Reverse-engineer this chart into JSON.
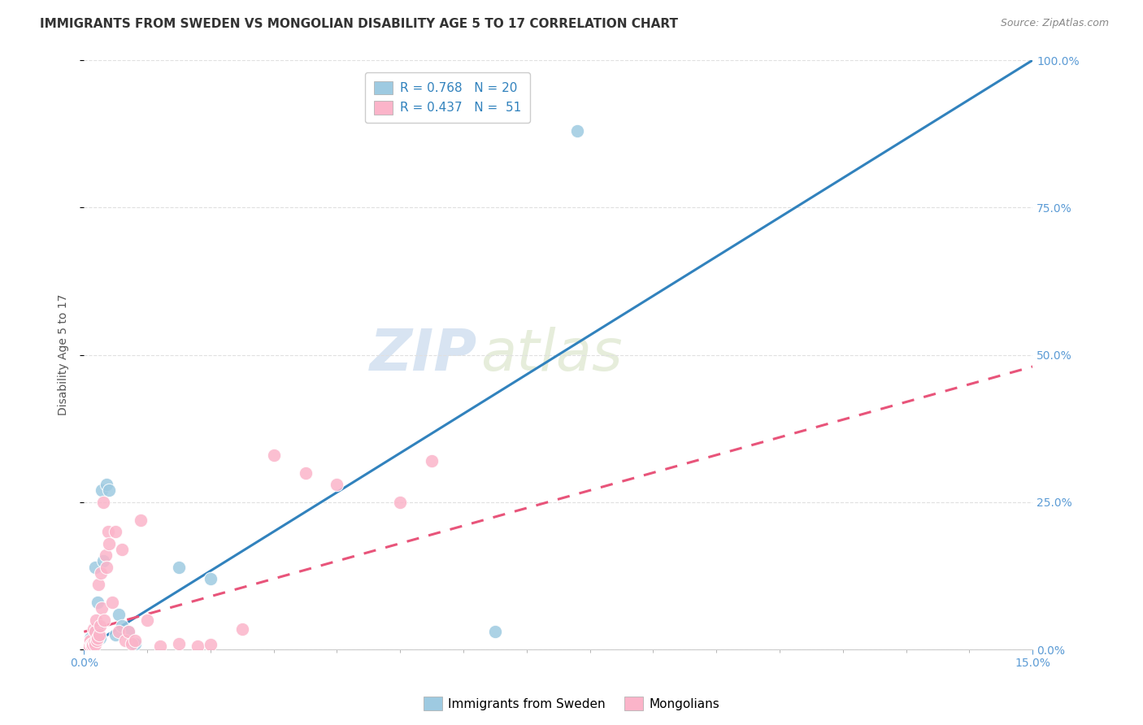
{
  "title": "IMMIGRANTS FROM SWEDEN VS MONGOLIAN DISABILITY AGE 5 TO 17 CORRELATION CHART",
  "source": "Source: ZipAtlas.com",
  "ylabel": "Disability Age 5 to 17",
  "xlim": [
    0.0,
    15.0
  ],
  "ylim": [
    0.0,
    100.0
  ],
  "legend_label_blue": "Immigrants from Sweden",
  "legend_label_pink": "Mongolians",
  "legend_r_blue": "R = 0.768",
  "legend_n_blue": "N = 20",
  "legend_r_pink": "R = 0.437",
  "legend_n_pink": "N =  51",
  "blue_color": "#9ecae1",
  "blue_line_color": "#3182bd",
  "pink_color": "#fbb4c9",
  "pink_line_color": "#e8547a",
  "watermark_zip": "ZIP",
  "watermark_atlas": "atlas",
  "blue_scatter_x": [
    0.05,
    0.1,
    0.15,
    0.18,
    0.2,
    0.22,
    0.25,
    0.28,
    0.3,
    0.35,
    0.4,
    0.5,
    0.55,
    0.6,
    0.7,
    0.8,
    1.5,
    2.0,
    6.5,
    7.8
  ],
  "blue_scatter_y": [
    1.0,
    2.0,
    1.5,
    14.0,
    3.5,
    8.0,
    2.0,
    27.0,
    15.0,
    28.0,
    27.0,
    2.5,
    6.0,
    4.0,
    3.0,
    1.0,
    14.0,
    12.0,
    3.0,
    88.0
  ],
  "pink_scatter_x": [
    0.02,
    0.03,
    0.04,
    0.05,
    0.06,
    0.07,
    0.08,
    0.09,
    0.1,
    0.11,
    0.12,
    0.13,
    0.14,
    0.15,
    0.16,
    0.17,
    0.18,
    0.19,
    0.2,
    0.22,
    0.23,
    0.24,
    0.25,
    0.26,
    0.28,
    0.3,
    0.32,
    0.34,
    0.36,
    0.38,
    0.4,
    0.45,
    0.5,
    0.55,
    0.6,
    0.65,
    0.7,
    0.75,
    0.8,
    0.9,
    1.0,
    1.2,
    1.5,
    1.8,
    2.0,
    2.5,
    3.0,
    3.5,
    4.0,
    5.0,
    5.5
  ],
  "pink_scatter_y": [
    0.3,
    0.5,
    0.8,
    1.0,
    0.5,
    0.8,
    1.2,
    0.5,
    1.5,
    0.8,
    1.0,
    0.5,
    0.8,
    3.5,
    1.2,
    0.8,
    3.0,
    5.0,
    1.5,
    2.0,
    11.0,
    2.5,
    4.0,
    13.0,
    7.0,
    25.0,
    5.0,
    16.0,
    14.0,
    20.0,
    18.0,
    8.0,
    20.0,
    3.0,
    17.0,
    1.5,
    3.0,
    1.0,
    1.5,
    22.0,
    5.0,
    0.5,
    1.0,
    0.5,
    0.8,
    3.5,
    33.0,
    30.0,
    28.0,
    25.0,
    32.0
  ],
  "blue_line_x": [
    0.0,
    15.0
  ],
  "blue_line_y": [
    0.0,
    100.0
  ],
  "pink_line_x": [
    0.0,
    15.0
  ],
  "pink_line_y": [
    3.0,
    48.0
  ],
  "title_fontsize": 11,
  "axis_label_fontsize": 10,
  "tick_fontsize": 10,
  "legend_fontsize": 11,
  "watermark_fontsize_zip": 52,
  "watermark_fontsize_atlas": 52,
  "background_color": "#ffffff",
  "grid_color": "#e0e0e0",
  "tick_color": "#5b9bd5",
  "x_minor_ticks": [
    1.0,
    2.0,
    3.0,
    4.0,
    5.0,
    6.0,
    7.0,
    8.0,
    9.0,
    10.0,
    11.0,
    12.0,
    13.0,
    14.0
  ]
}
